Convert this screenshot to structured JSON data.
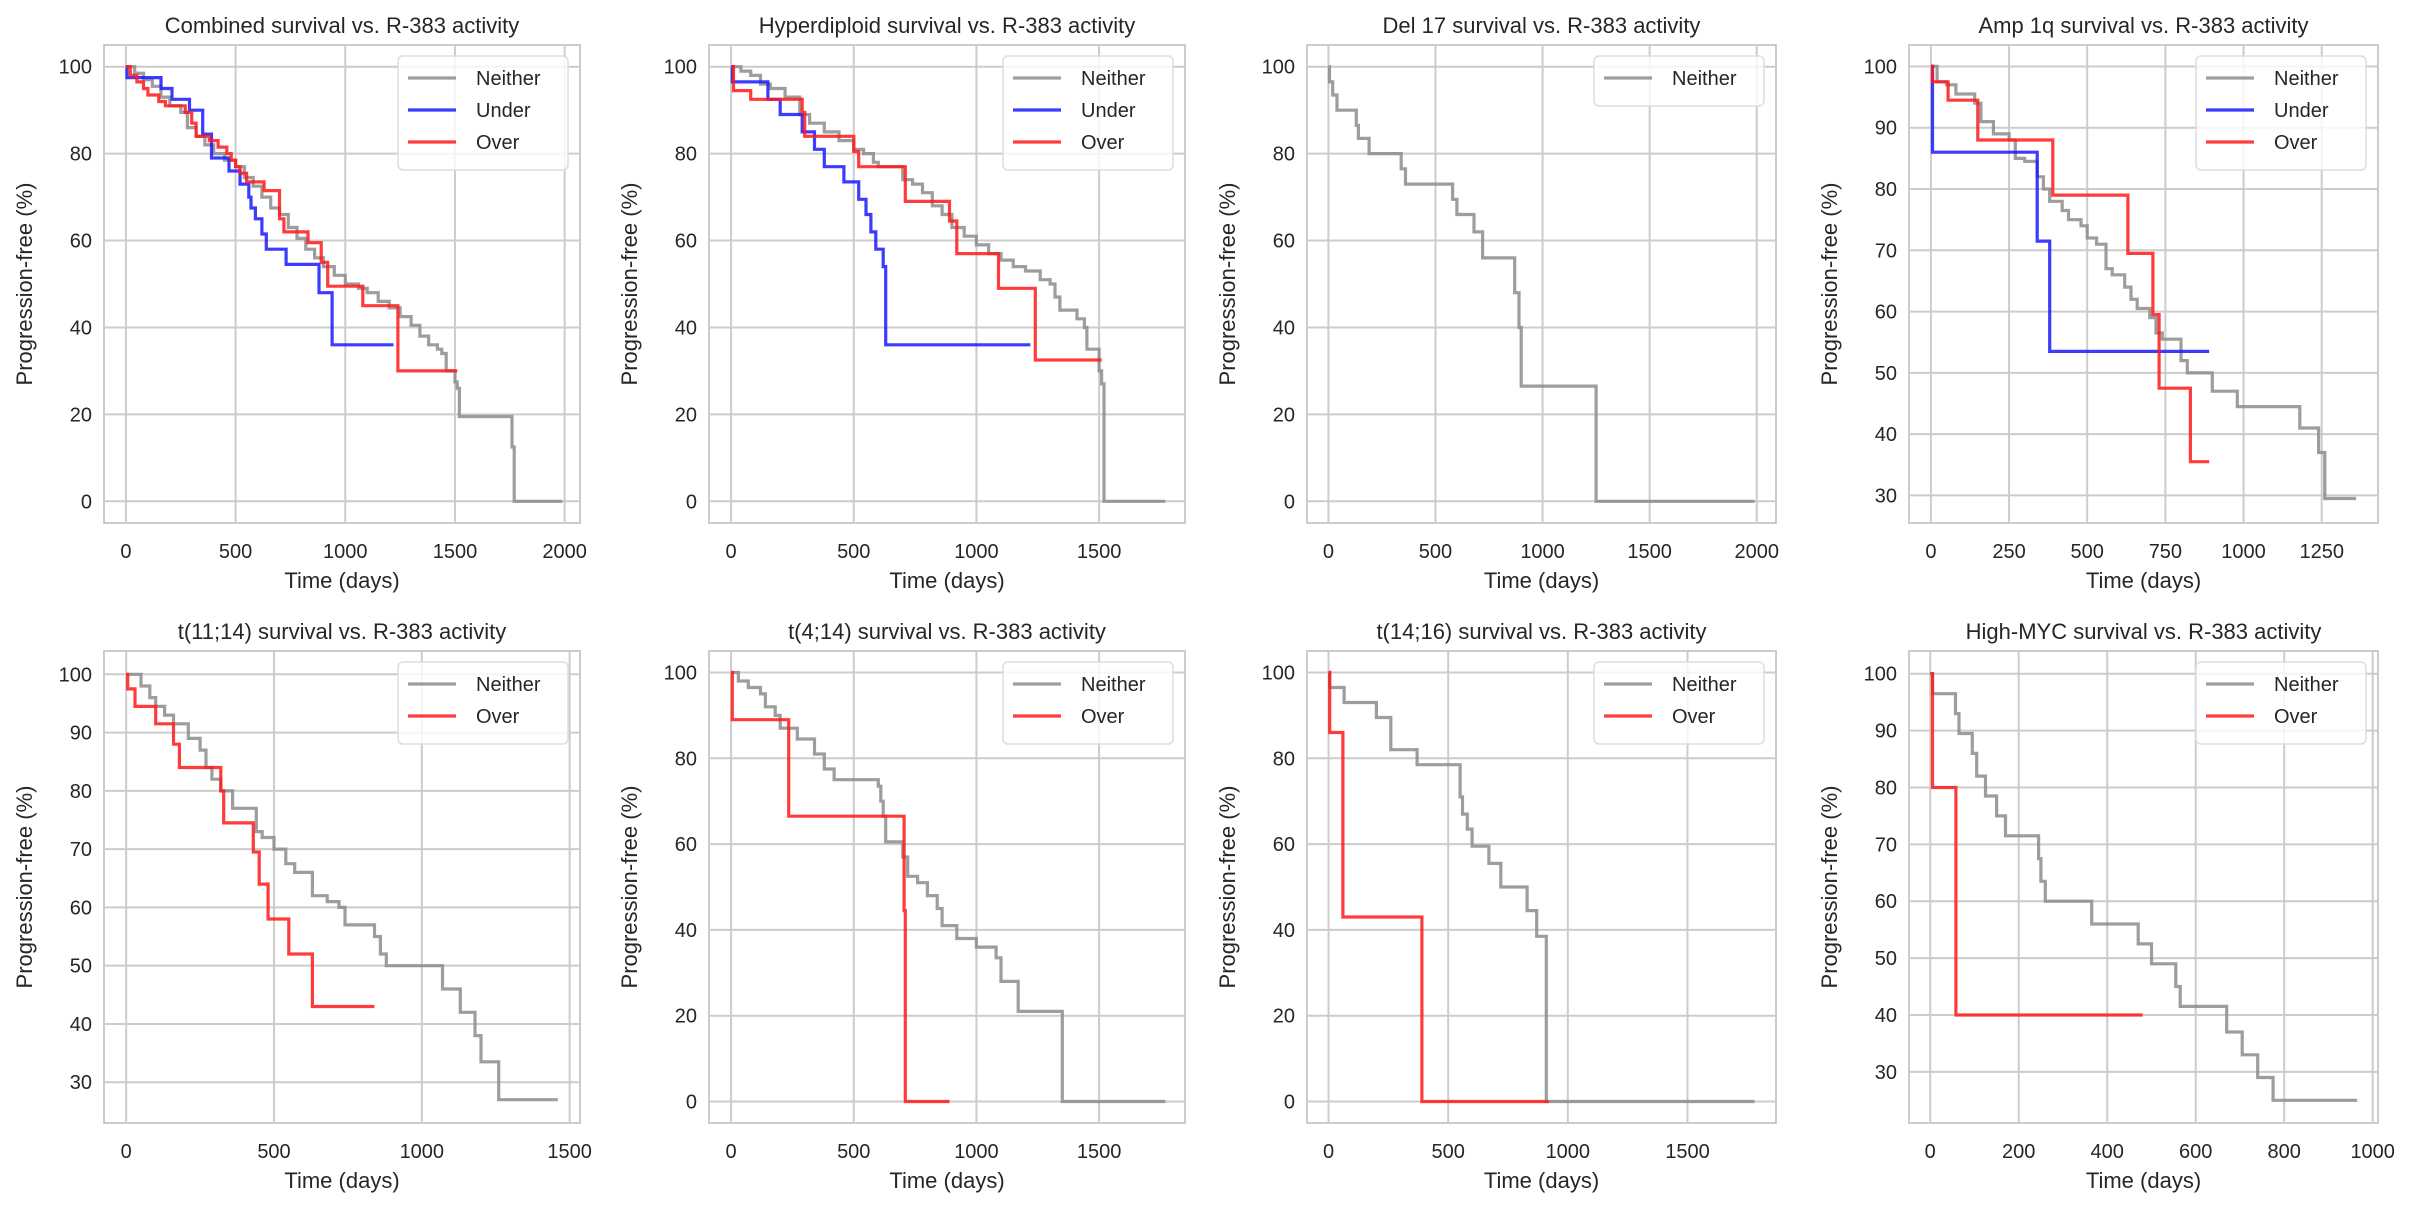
{
  "figure": {
    "series_colors": {
      "Neither": "#8c8c8c",
      "Under": "#1a1aff",
      "Over": "#ff1a1a"
    },
    "grid_color": "#cccccc",
    "spine_color": "#cccccc"
  },
  "chart_data": [
    {
      "type": "line",
      "step": true,
      "title": "Combined survival vs. R-383 activity",
      "xlabel": "Time (days)",
      "ylabel": "Progression-free (%)",
      "xlim": [
        -100,
        2070
      ],
      "ylim": [
        -5,
        105
      ],
      "xticks": [
        0,
        500,
        1000,
        1500,
        2000
      ],
      "yticks": [
        0,
        20,
        40,
        60,
        80,
        100
      ],
      "grid": true,
      "legend": "top-right",
      "series": [
        {
          "name": "Neither",
          "x": [
            0,
            40,
            80,
            120,
            160,
            200,
            250,
            280,
            320,
            360,
            400,
            450,
            500,
            540,
            580,
            620,
            660,
            700,
            740,
            780,
            820,
            860,
            900,
            950,
            1000,
            1060,
            1100,
            1150,
            1200,
            1250,
            1300,
            1340,
            1380,
            1420,
            1440,
            1460,
            1500,
            1510,
            1520,
            1760,
            1770,
            1990
          ],
          "y": [
            100,
            98.5,
            97,
            95.5,
            93,
            91,
            89.5,
            86,
            84,
            82,
            80,
            78.5,
            77,
            74.5,
            72.5,
            70,
            67.5,
            66,
            63,
            60.5,
            58,
            56,
            54,
            52,
            50,
            49,
            48,
            46,
            44.5,
            42.5,
            40.5,
            38,
            36,
            35,
            34,
            30,
            27.5,
            26,
            19.5,
            12.5,
            0,
            0
          ]
        },
        {
          "name": "Under",
          "x": [
            0,
            5,
            160,
            210,
            290,
            350,
            390,
            470,
            520,
            560,
            570,
            590,
            620,
            640,
            730,
            880,
            940,
            1220
          ],
          "y": [
            100,
            97.5,
            95,
            92.5,
            90,
            84.5,
            79,
            76,
            73,
            70,
            67.5,
            65,
            61.5,
            58,
            54.5,
            48,
            36,
            36
          ]
        },
        {
          "name": "Over",
          "x": [
            0,
            20,
            50,
            80,
            100,
            150,
            180,
            270,
            300,
            320,
            340,
            380,
            420,
            460,
            480,
            500,
            520,
            550,
            630,
            700,
            720,
            730,
            830,
            890,
            920,
            1080,
            1240,
            1510
          ],
          "y": [
            100,
            98,
            96.5,
            95,
            93.5,
            92,
            91,
            89.5,
            87,
            84,
            84,
            83,
            81.5,
            80,
            78.5,
            77,
            75.5,
            73.5,
            71.5,
            65,
            62,
            62,
            59.5,
            55,
            49.5,
            45,
            30,
            30
          ]
        }
      ]
    },
    {
      "type": "line",
      "step": true,
      "title": "Hyperdiploid survival vs. R-383 activity",
      "xlabel": "Time (days)",
      "ylabel": "Progression-free (%)",
      "xlim": [
        -90,
        1850
      ],
      "ylim": [
        -5,
        105
      ],
      "xticks": [
        0,
        500,
        1000,
        1500
      ],
      "yticks": [
        0,
        20,
        40,
        60,
        80,
        100
      ],
      "grid": true,
      "legend": "top-right",
      "series": [
        {
          "name": "Neither",
          "x": [
            0,
            40,
            80,
            120,
            160,
            220,
            280,
            320,
            380,
            440,
            500,
            540,
            580,
            600,
            640,
            700,
            740,
            780,
            820,
            860,
            900,
            950,
            1000,
            1050,
            1100,
            1150,
            1200,
            1260,
            1300,
            1320,
            1340,
            1410,
            1440,
            1450,
            1500,
            1510,
            1520,
            1770
          ],
          "y": [
            100,
            99,
            98,
            96,
            95,
            93,
            89,
            87,
            85,
            83,
            81,
            80,
            78,
            77,
            77,
            74,
            73,
            71,
            68,
            66,
            63,
            61,
            59,
            57,
            55.5,
            54,
            53,
            51,
            50,
            47,
            44,
            42,
            40,
            35,
            30,
            27,
            0,
            0
          ]
        },
        {
          "name": "Under",
          "x": [
            0,
            5,
            150,
            200,
            290,
            340,
            380,
            460,
            520,
            550,
            570,
            590,
            620,
            630,
            1220
          ],
          "y": [
            100,
            96.5,
            92.5,
            89,
            85,
            81,
            77,
            73.5,
            69.5,
            66,
            62,
            58,
            54,
            36,
            36
          ]
        },
        {
          "name": "Over",
          "x": [
            0,
            10,
            80,
            290,
            300,
            500,
            520,
            710,
            890,
            920,
            1090,
            1240,
            1510
          ],
          "y": [
            100,
            94.5,
            92.5,
            89.5,
            84,
            80.5,
            77,
            69,
            64.5,
            57,
            49,
            32.5,
            32.5
          ]
        }
      ]
    },
    {
      "type": "line",
      "step": true,
      "title": "Del 17 survival vs. R-383 activity",
      "xlabel": "Time (days)",
      "ylabel": "Progression-free (%)",
      "xlim": [
        -100,
        2090
      ],
      "ylim": [
        -5,
        105
      ],
      "xticks": [
        0,
        500,
        1000,
        1500,
        2000
      ],
      "yticks": [
        0,
        20,
        40,
        60,
        80,
        100
      ],
      "grid": true,
      "legend": "top-right",
      "series": [
        {
          "name": "Neither",
          "x": [
            0,
            5,
            20,
            40,
            130,
            140,
            190,
            340,
            360,
            580,
            600,
            680,
            720,
            870,
            890,
            900,
            910,
            1250,
            1990
          ],
          "y": [
            100,
            96.5,
            93.5,
            90,
            86.5,
            83.5,
            80,
            76.5,
            73,
            69.5,
            66,
            62,
            56,
            48,
            40,
            26.5,
            26.5,
            0,
            0
          ]
        }
      ]
    },
    {
      "type": "line",
      "step": true,
      "title": "Amp 1q survival vs. R-383 activity",
      "xlabel": "Time (days)",
      "ylabel": "Progression-free (%)",
      "xlim": [
        -70,
        1430
      ],
      "ylim": [
        25.5,
        103.5
      ],
      "xticks": [
        0,
        250,
        500,
        750,
        1000,
        1250
      ],
      "yticks": [
        30,
        40,
        50,
        60,
        70,
        80,
        90,
        100
      ],
      "grid": true,
      "legend": "top-right",
      "series": [
        {
          "name": "Neither",
          "x": [
            0,
            20,
            50,
            80,
            140,
            160,
            200,
            250,
            270,
            300,
            340,
            360,
            380,
            420,
            440,
            480,
            500,
            530,
            560,
            580,
            620,
            640,
            660,
            700,
            720,
            740,
            800,
            820,
            840,
            900,
            980,
            1180,
            1240,
            1260,
            1360
          ],
          "y": [
            100,
            97.5,
            97,
            95.5,
            94,
            91,
            89,
            88,
            85,
            84.5,
            82,
            80,
            78,
            76.5,
            75,
            74,
            72,
            71,
            67,
            66,
            64,
            62,
            60.5,
            59,
            56.5,
            55.5,
            52,
            50,
            50,
            47,
            44.5,
            41,
            37,
            29.5,
            29.5
          ]
        },
        {
          "name": "Under",
          "x": [
            0,
            5,
            340,
            380,
            890
          ],
          "y": [
            100,
            86,
            71.5,
            53.5,
            53.5
          ]
        },
        {
          "name": "Over",
          "x": [
            0,
            5,
            55,
            150,
            390,
            630,
            710,
            730,
            830,
            890
          ],
          "y": [
            100,
            97.5,
            94.5,
            88,
            79,
            69.5,
            59.5,
            47.5,
            35.5,
            35.5
          ]
        }
      ]
    },
    {
      "type": "line",
      "step": true,
      "title": "t(11;14) survival vs. R-383 activity",
      "xlabel": "Time (days)",
      "ylabel": "Progression-free (%)",
      "xlim": [
        -75,
        1535
      ],
      "ylim": [
        23,
        104
      ],
      "xticks": [
        0,
        500,
        1000,
        1500
      ],
      "yticks": [
        30,
        40,
        50,
        60,
        70,
        80,
        90,
        100
      ],
      "grid": true,
      "legend": "top-right",
      "series": [
        {
          "name": "Neither",
          "x": [
            0,
            50,
            80,
            100,
            130,
            160,
            210,
            250,
            270,
            290,
            320,
            360,
            440,
            460,
            500,
            540,
            570,
            630,
            680,
            720,
            740,
            840,
            860,
            880,
            1070,
            1130,
            1180,
            1200,
            1260,
            1460
          ],
          "y": [
            100,
            98,
            96,
            94.5,
            93,
            91.5,
            89,
            87,
            84,
            82,
            80,
            77,
            73,
            72,
            70,
            67.5,
            66,
            62,
            61,
            60,
            57,
            55,
            52,
            50,
            46,
            42,
            38,
            33.5,
            27,
            27
          ]
        },
        {
          "name": "Over",
          "x": [
            0,
            5,
            30,
            100,
            160,
            180,
            320,
            330,
            430,
            450,
            480,
            550,
            630,
            840
          ],
          "y": [
            100,
            97.5,
            94.5,
            91.5,
            88,
            84,
            80,
            74.5,
            69.5,
            64,
            58,
            52,
            43,
            43
          ]
        }
      ]
    },
    {
      "type": "line",
      "step": true,
      "title": "t(4;14) survival vs. R-383 activity",
      "xlabel": "Time (days)",
      "ylabel": "Progression-free (%)",
      "xlim": [
        -90,
        1850
      ],
      "ylim": [
        -5,
        105
      ],
      "xticks": [
        0,
        500,
        1000,
        1500
      ],
      "yticks": [
        0,
        20,
        40,
        60,
        80,
        100
      ],
      "grid": true,
      "legend": "top-right",
      "series": [
        {
          "name": "Neither",
          "x": [
            0,
            30,
            70,
            120,
            140,
            180,
            200,
            270,
            340,
            380,
            420,
            600,
            610,
            620,
            630,
            700,
            720,
            760,
            800,
            840,
            860,
            920,
            1000,
            1080,
            1100,
            1170,
            1350,
            1770
          ],
          "y": [
            100,
            98,
            96.5,
            95,
            92,
            90,
            87,
            84.5,
            81,
            77.5,
            75,
            73.5,
            70,
            66.5,
            60.5,
            57,
            52.5,
            51,
            48,
            45,
            41,
            38,
            36,
            33.5,
            28,
            21,
            0,
            0
          ]
        },
        {
          "name": "Over",
          "x": [
            0,
            5,
            235,
            705,
            710,
            890
          ],
          "y": [
            100,
            89,
            66.5,
            44.5,
            0,
            0
          ]
        }
      ]
    },
    {
      "type": "line",
      "step": true,
      "title": "t(14;16) survival vs. R-383 activity",
      "xlabel": "Time (days)",
      "ylabel": "Progression-free (%)",
      "xlim": [
        -90,
        1870
      ],
      "ylim": [
        -5,
        105
      ],
      "xticks": [
        0,
        500,
        1000,
        1500
      ],
      "yticks": [
        0,
        20,
        40,
        60,
        80,
        100
      ],
      "grid": true,
      "legend": "top-right",
      "series": [
        {
          "name": "Neither",
          "x": [
            0,
            5,
            65,
            200,
            260,
            370,
            550,
            560,
            580,
            600,
            670,
            720,
            830,
            870,
            910,
            1780
          ],
          "y": [
            100,
            96.5,
            93,
            89.5,
            82,
            78.5,
            71,
            67,
            63.5,
            59.5,
            55.5,
            50,
            44.5,
            38.5,
            0,
            0
          ]
        },
        {
          "name": "Over",
          "x": [
            0,
            5,
            60,
            390,
            920
          ],
          "y": [
            100,
            86,
            43,
            0,
            0
          ]
        }
      ]
    },
    {
      "type": "line",
      "step": true,
      "title": "High-MYC survival vs. R-383 activity",
      "xlabel": "Time (days)",
      "ylabel": "Progression-free (%)",
      "xlim": [
        -48,
        1012
      ],
      "ylim": [
        21,
        104
      ],
      "xticks": [
        0,
        200,
        400,
        600,
        800,
        1000
      ],
      "yticks": [
        30,
        40,
        50,
        60,
        70,
        80,
        90,
        100
      ],
      "grid": true,
      "legend": "top-right",
      "series": [
        {
          "name": "Neither",
          "x": [
            0,
            5,
            57,
            65,
            95,
            105,
            125,
            150,
            170,
            245,
            250,
            260,
            265,
            365,
            470,
            500,
            555,
            565,
            670,
            705,
            740,
            775,
            965
          ],
          "y": [
            100,
            96.5,
            93,
            89.5,
            86,
            82,
            78.5,
            75,
            71.5,
            67.5,
            63.5,
            60,
            60,
            56,
            52.5,
            49,
            45,
            41.5,
            37,
            33,
            29,
            25,
            25
          ]
        },
        {
          "name": "Over",
          "x": [
            0,
            5,
            58,
            480
          ],
          "y": [
            100,
            80,
            40,
            40
          ]
        }
      ]
    }
  ]
}
